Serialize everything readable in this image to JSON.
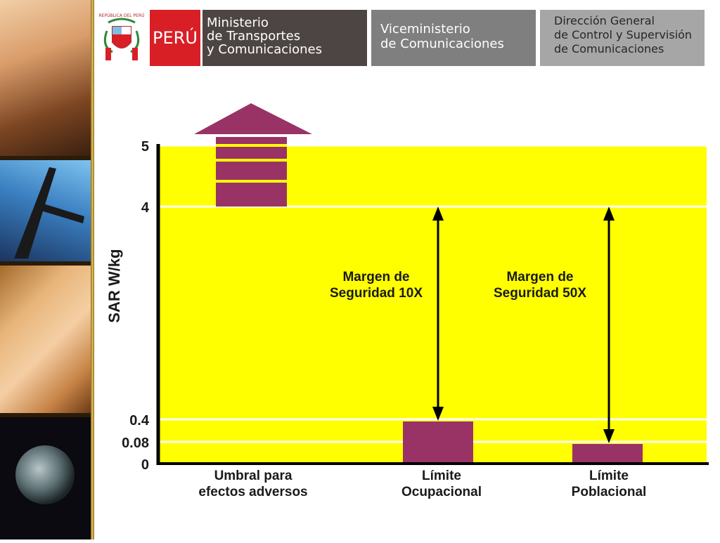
{
  "header": {
    "seal_text": "REPÚBLICA DEL PERÚ",
    "country": "PERÚ",
    "ministry_lines": [
      "Ministerio",
      "de Transportes",
      "y Comunicaciones"
    ],
    "viceministry_lines": [
      "Viceministerio",
      "de Comunicaciones"
    ],
    "direction_lines": [
      "Dirección General",
      "de Control y Supervisión",
      "de Comunicaciones"
    ]
  },
  "colors": {
    "plot_bg": "#ffff00",
    "bar": "#993366",
    "peru_red": "#d91f26",
    "ministry_gray": "#4d4544",
    "vice_gray": "#7f7f7f",
    "dir_gray": "#a6a6a6"
  },
  "chart_data": {
    "type": "bar",
    "ylabel": "SAR  W/kg",
    "ytick_labels": [
      "5",
      "4",
      "0.4",
      "0.08",
      "0"
    ],
    "categories": [
      [
        "Umbral para",
        "efectos adversos"
      ],
      [
        "Límite",
        "Ocupacional"
      ],
      [
        "Límite",
        "Poblacional"
      ]
    ],
    "values": [
      4,
      0.4,
      0.08
    ],
    "first_bar_continues_above_axis": true,
    "annotations": [
      {
        "lines": [
          "Margen de",
          "Seguridad 10X"
        ],
        "from": 0.4,
        "to": 4
      },
      {
        "lines": [
          "Margen de",
          "Seguridad 50X"
        ],
        "from": 0.08,
        "to": 4
      }
    ]
  }
}
